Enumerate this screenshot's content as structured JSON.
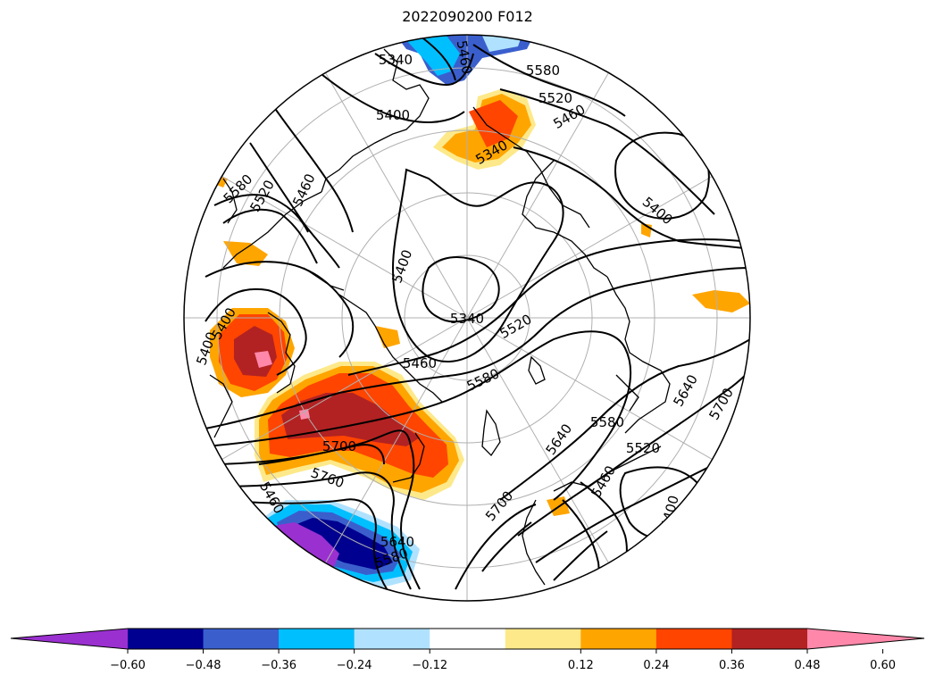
{
  "title": "2022090200 F012",
  "contour_labels": [
    "5340",
    "5460",
    "5580",
    "5520",
    "5460",
    "5340",
    "5400",
    "5580",
    "5520",
    "5460",
    "5400",
    "5400",
    "5340",
    "5520",
    "5580",
    "5460",
    "5400",
    "5700",
    "5760",
    "5640",
    "5580",
    "5700",
    "5640",
    "5580",
    "5520",
    "5460",
    "5400",
    "5640",
    "5700",
    "5400",
    "5460"
  ],
  "colorbar": {
    "ticks": [
      "−0.60",
      "−0.48",
      "−0.36",
      "−0.24",
      "−0.12",
      "0.12",
      "0.24",
      "0.36",
      "0.48",
      "0.60"
    ],
    "colors": {
      "under": "#9b30d0",
      "bins": [
        "#9b30d0",
        "#000090",
        "#3a5fcd",
        "#00bfff",
        "#b0e2ff",
        "#ffffff",
        "#fde98a",
        "#ffa500",
        "#ff4500",
        "#b22222",
        "#ff88aa"
      ],
      "over": "#ff88aa"
    }
  },
  "colors": {
    "background": "#ffffff",
    "contour": "#000000",
    "grid": "#b0b0b0",
    "coast": "#000000"
  }
}
